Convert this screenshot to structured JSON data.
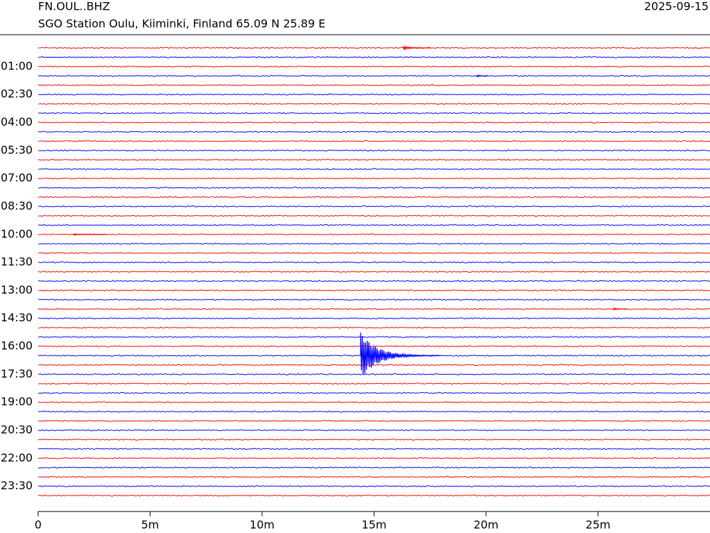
{
  "chart_data": {
    "type": "helicorder",
    "title": "FN.OUL..BHZ",
    "subtitle": "SGO Station Oulu, Kiiminki, Finland  65.09 N 25.89 E",
    "date": "2025-09-15",
    "categories": [
      null,
      null,
      "01:00",
      null,
      null,
      "02:30",
      null,
      null,
      "04:00",
      null,
      null,
      "05:30",
      null,
      null,
      "07:00",
      null,
      null,
      "08:30",
      null,
      null,
      "10:00",
      null,
      null,
      "11:30",
      null,
      null,
      "13:00",
      null,
      null,
      "14:30",
      null,
      null,
      "16:00",
      null,
      null,
      "17:30",
      null,
      null,
      "19:00",
      null,
      null,
      "20:30",
      null,
      null,
      "22:00",
      null,
      null,
      "23:30",
      null
    ],
    "colors": [
      "#ff0000",
      "#0000ff"
    ],
    "xlim": [
      0,
      30
    ],
    "xticks": [
      0,
      {
        "value": 5,
        "label": "5m"
      },
      {
        "value": 10,
        "label": "10m"
      },
      {
        "value": 15,
        "label": "15m"
      },
      {
        "value": 20,
        "label": "20m"
      },
      {
        "value": 25,
        "label": "25m"
      }
    ],
    "events": [
      {
        "row": 0,
        "x": 16.3,
        "duration": 1.2,
        "peak": 0.25
      },
      {
        "row": 3,
        "x": 19.6,
        "duration": 0.5,
        "peak": 0.15
      },
      {
        "row": 20,
        "x": 1.6,
        "duration": 1.4,
        "peak": 0.08
      },
      {
        "row": 28,
        "x": 25.7,
        "duration": 0.6,
        "peak": 0.15
      },
      {
        "row": 33,
        "x": 14.4,
        "duration": 3.6,
        "peak": 2.5
      }
    ]
  }
}
